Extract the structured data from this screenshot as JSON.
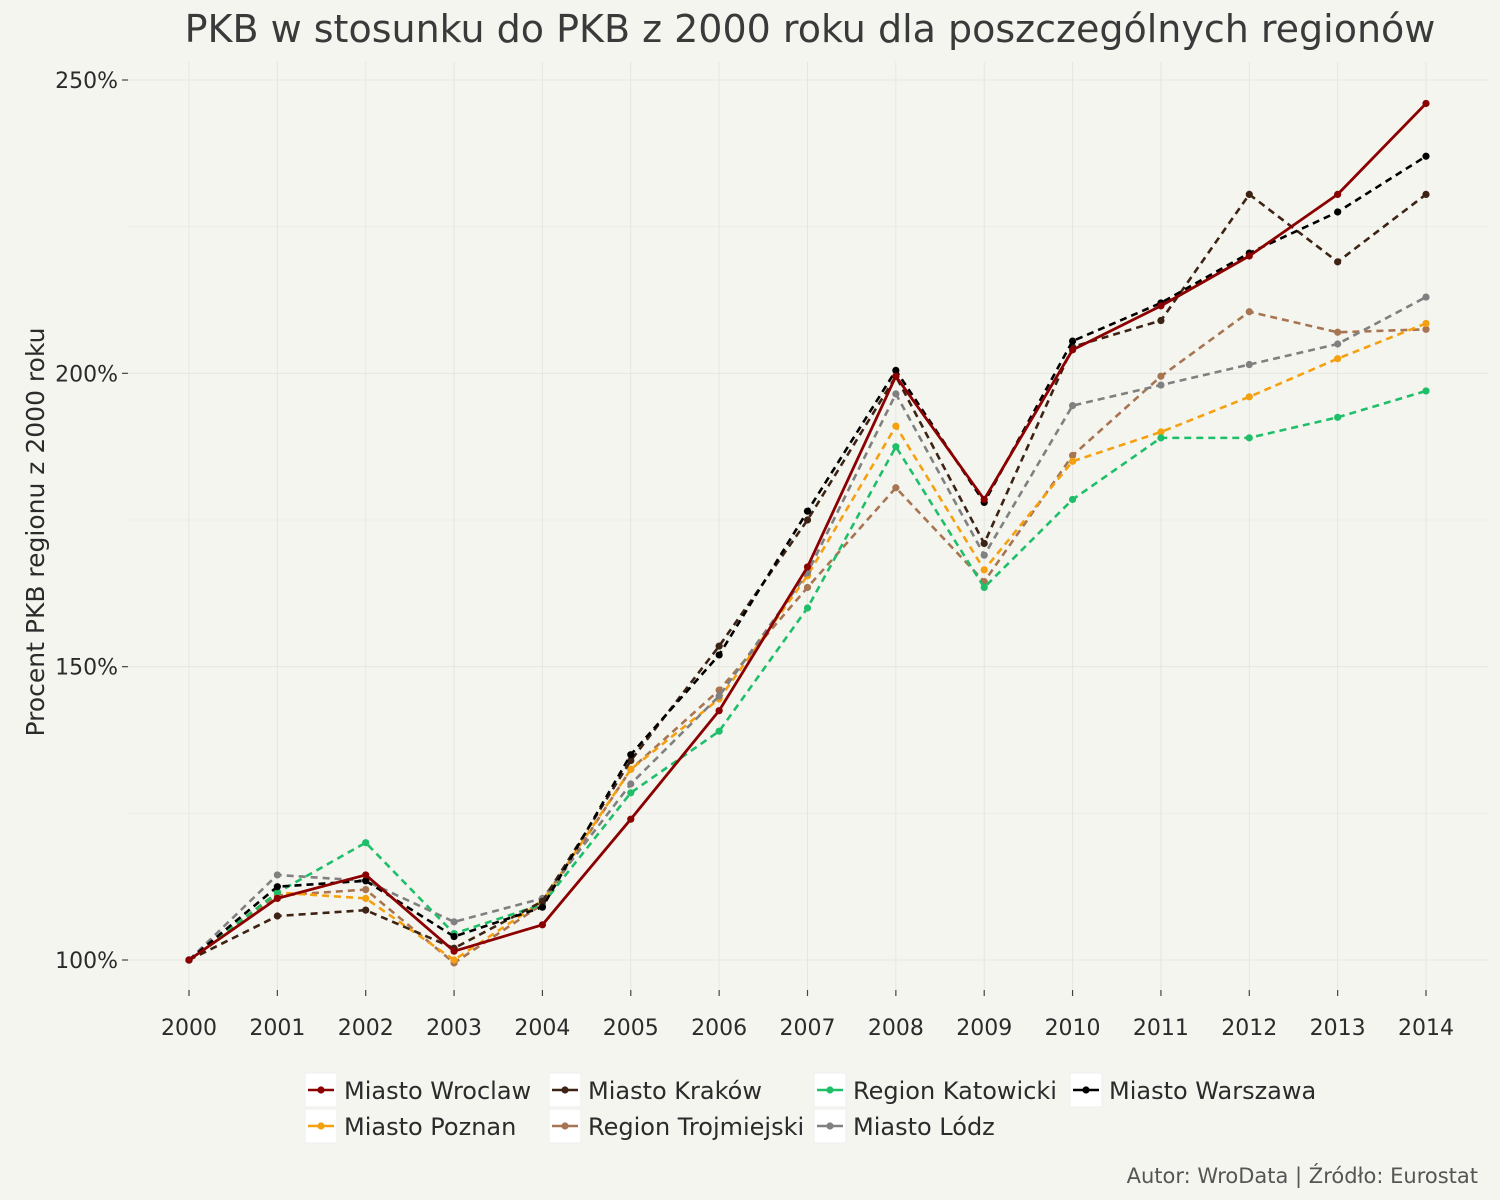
{
  "chart_data": {
    "type": "line",
    "title": "PKB w stosunku do PKB z 2000 roku dla poszczególnych regionów",
    "xlabel": "",
    "ylabel": "Procent PKB regionu z 2000 roku",
    "caption": "Autor: WroData | Źródło: Eurostat",
    "x": [
      2000,
      2001,
      2002,
      2003,
      2004,
      2005,
      2006,
      2007,
      2008,
      2009,
      2010,
      2011,
      2012,
      2013,
      2014
    ],
    "x_tick_labels": [
      "2000",
      "2001",
      "2002",
      "2003",
      "2004",
      "2005",
      "2006",
      "2007",
      "2008",
      "2009",
      "2010",
      "2011",
      "2012",
      "2013",
      "2014"
    ],
    "ylim": [
      95,
      252
    ],
    "y_ticks": [
      100,
      150,
      200,
      250
    ],
    "y_tick_labels": [
      "100%",
      "150%",
      "200%",
      "250%"
    ],
    "grid": true,
    "legend_position": "bottom",
    "series": [
      {
        "name": "Miasto Wroclaw",
        "color": "#8b0000",
        "style": "solid",
        "values": [
          100,
          110.5,
          114.5,
          101.5,
          106,
          124,
          142.5,
          167,
          199.5,
          178.5,
          204,
          211.5,
          220,
          230.5,
          246
        ]
      },
      {
        "name": "Miasto Kraków",
        "color": "#3d2314",
        "style": "dashed",
        "values": [
          100,
          107.5,
          108.5,
          102,
          110,
          134,
          153.5,
          175,
          199.5,
          171,
          204.5,
          209,
          230.5,
          219,
          230.5
        ]
      },
      {
        "name": "Region Katowicki",
        "color": "#1fbf6a",
        "style": "dashed",
        "values": [
          100,
          111.5,
          120,
          104.5,
          109.5,
          128.5,
          139,
          160,
          187.5,
          163.5,
          178.5,
          189,
          189,
          192.5,
          197
        ]
      },
      {
        "name": "Miasto Warszawa",
        "color": "#000000",
        "style": "dashed",
        "values": [
          100,
          112.5,
          113.5,
          104,
          109,
          135,
          152,
          176.5,
          200.5,
          178,
          205.5,
          212,
          220.5,
          227.5,
          237
        ]
      },
      {
        "name": "Miasto Poznan",
        "color": "#f5a00f",
        "style": "dashed",
        "values": [
          100,
          111.5,
          110.5,
          100,
          110,
          132.5,
          144.5,
          165.5,
          191,
          166.5,
          185,
          190,
          196,
          202.5,
          208.5
        ]
      },
      {
        "name": "Region Trojmiejski",
        "color": "#a87552",
        "style": "dashed",
        "values": [
          100,
          111,
          112,
          99.5,
          109.5,
          132.5,
          146,
          163.5,
          180.5,
          164.5,
          186,
          199.5,
          210.5,
          207,
          207.5
        ]
      },
      {
        "name": "Miasto Lódz",
        "color": "#808080",
        "style": "dashed",
        "values": [
          100,
          114.5,
          113.5,
          106.5,
          110.5,
          130,
          145,
          166,
          196.5,
          169,
          194.5,
          198,
          201.5,
          205,
          213
        ]
      }
    ]
  }
}
